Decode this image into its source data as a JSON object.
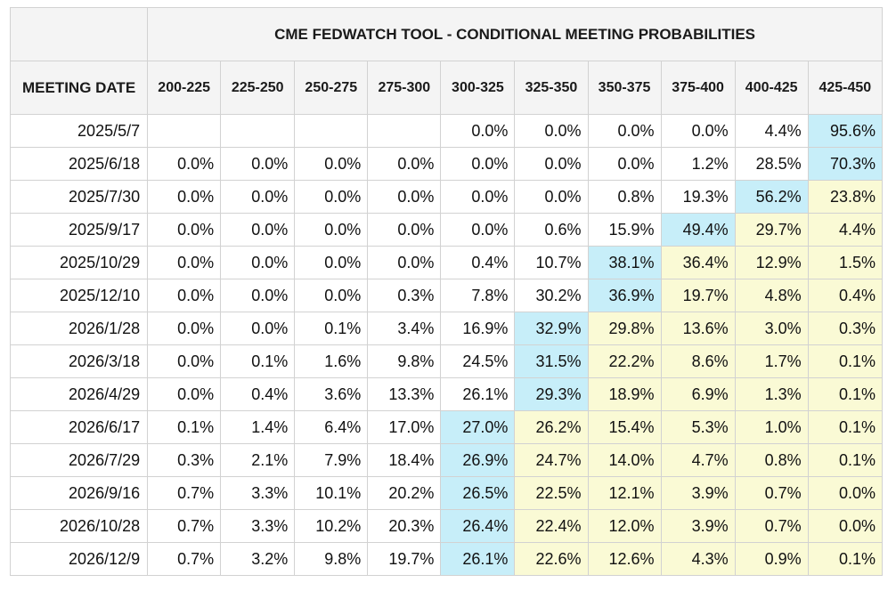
{
  "title": "CME FEDWATCH TOOL - CONDITIONAL MEETING PROBABILITIES",
  "date_header": "MEETING DATE",
  "ranges": [
    "200-225",
    "225-250",
    "250-275",
    "275-300",
    "300-325",
    "325-350",
    "350-375",
    "375-400",
    "400-425",
    "425-450"
  ],
  "rows": [
    {
      "date": "2025/5/7",
      "values": [
        "",
        "",
        "",
        "",
        "0.0%",
        "0.0%",
        "0.0%",
        "0.0%",
        "4.4%",
        "95.6%"
      ],
      "shade": [
        "",
        "",
        "",
        "",
        "",
        "",
        "",
        "",
        "",
        "blue"
      ]
    },
    {
      "date": "2025/6/18",
      "values": [
        "0.0%",
        "0.0%",
        "0.0%",
        "0.0%",
        "0.0%",
        "0.0%",
        "0.0%",
        "1.2%",
        "28.5%",
        "70.3%"
      ],
      "shade": [
        "",
        "",
        "",
        "",
        "",
        "",
        "",
        "",
        "",
        "blue"
      ]
    },
    {
      "date": "2025/7/30",
      "values": [
        "0.0%",
        "0.0%",
        "0.0%",
        "0.0%",
        "0.0%",
        "0.0%",
        "0.8%",
        "19.3%",
        "56.2%",
        "23.8%"
      ],
      "shade": [
        "",
        "",
        "",
        "",
        "",
        "",
        "",
        "",
        "blue",
        "yellow"
      ]
    },
    {
      "date": "2025/9/17",
      "values": [
        "0.0%",
        "0.0%",
        "0.0%",
        "0.0%",
        "0.0%",
        "0.6%",
        "15.9%",
        "49.4%",
        "29.7%",
        "4.4%"
      ],
      "shade": [
        "",
        "",
        "",
        "",
        "",
        "",
        "",
        "blue",
        "yellow",
        "yellow"
      ]
    },
    {
      "date": "2025/10/29",
      "values": [
        "0.0%",
        "0.0%",
        "0.0%",
        "0.0%",
        "0.4%",
        "10.7%",
        "38.1%",
        "36.4%",
        "12.9%",
        "1.5%"
      ],
      "shade": [
        "",
        "",
        "",
        "",
        "",
        "",
        "blue",
        "yellow",
        "yellow",
        "yellow"
      ]
    },
    {
      "date": "2025/12/10",
      "values": [
        "0.0%",
        "0.0%",
        "0.0%",
        "0.3%",
        "7.8%",
        "30.2%",
        "36.9%",
        "19.7%",
        "4.8%",
        "0.4%"
      ],
      "shade": [
        "",
        "",
        "",
        "",
        "",
        "",
        "blue",
        "yellow",
        "yellow",
        "yellow"
      ]
    },
    {
      "date": "2026/1/28",
      "values": [
        "0.0%",
        "0.0%",
        "0.1%",
        "3.4%",
        "16.9%",
        "32.9%",
        "29.8%",
        "13.6%",
        "3.0%",
        "0.3%"
      ],
      "shade": [
        "",
        "",
        "",
        "",
        "",
        "blue",
        "yellow",
        "yellow",
        "yellow",
        "yellow"
      ]
    },
    {
      "date": "2026/3/18",
      "values": [
        "0.0%",
        "0.1%",
        "1.6%",
        "9.8%",
        "24.5%",
        "31.5%",
        "22.2%",
        "8.6%",
        "1.7%",
        "0.1%"
      ],
      "shade": [
        "",
        "",
        "",
        "",
        "",
        "blue",
        "yellow",
        "yellow",
        "yellow",
        "yellow"
      ]
    },
    {
      "date": "2026/4/29",
      "values": [
        "0.0%",
        "0.4%",
        "3.6%",
        "13.3%",
        "26.1%",
        "29.3%",
        "18.9%",
        "6.9%",
        "1.3%",
        "0.1%"
      ],
      "shade": [
        "",
        "",
        "",
        "",
        "",
        "blue",
        "yellow",
        "yellow",
        "yellow",
        "yellow"
      ]
    },
    {
      "date": "2026/6/17",
      "values": [
        "0.1%",
        "1.4%",
        "6.4%",
        "17.0%",
        "27.0%",
        "26.2%",
        "15.4%",
        "5.3%",
        "1.0%",
        "0.1%"
      ],
      "shade": [
        "",
        "",
        "",
        "",
        "blue",
        "yellow",
        "yellow",
        "yellow",
        "yellow",
        "yellow"
      ]
    },
    {
      "date": "2026/7/29",
      "values": [
        "0.3%",
        "2.1%",
        "7.9%",
        "18.4%",
        "26.9%",
        "24.7%",
        "14.0%",
        "4.7%",
        "0.8%",
        "0.1%"
      ],
      "shade": [
        "",
        "",
        "",
        "",
        "blue",
        "yellow",
        "yellow",
        "yellow",
        "yellow",
        "yellow"
      ]
    },
    {
      "date": "2026/9/16",
      "values": [
        "0.7%",
        "3.3%",
        "10.1%",
        "20.2%",
        "26.5%",
        "22.5%",
        "12.1%",
        "3.9%",
        "0.7%",
        "0.0%"
      ],
      "shade": [
        "",
        "",
        "",
        "",
        "blue",
        "yellow",
        "yellow",
        "yellow",
        "yellow",
        "yellow"
      ]
    },
    {
      "date": "2026/10/28",
      "values": [
        "0.7%",
        "3.3%",
        "10.2%",
        "20.3%",
        "26.4%",
        "22.4%",
        "12.0%",
        "3.9%",
        "0.7%",
        "0.0%"
      ],
      "shade": [
        "",
        "",
        "",
        "",
        "blue",
        "yellow",
        "yellow",
        "yellow",
        "yellow",
        "yellow"
      ]
    },
    {
      "date": "2026/12/9",
      "values": [
        "0.7%",
        "3.2%",
        "9.8%",
        "19.7%",
        "26.1%",
        "22.6%",
        "12.6%",
        "4.3%",
        "0.9%",
        "0.1%"
      ],
      "shade": [
        "",
        "",
        "",
        "",
        "blue",
        "yellow",
        "yellow",
        "yellow",
        "yellow",
        "yellow"
      ]
    }
  ],
  "colors": {
    "highlight_max": "#c7eef9",
    "highlight_other": "#fafad5",
    "header_bg": "#f4f4f4",
    "border": "#d2d2d2"
  }
}
